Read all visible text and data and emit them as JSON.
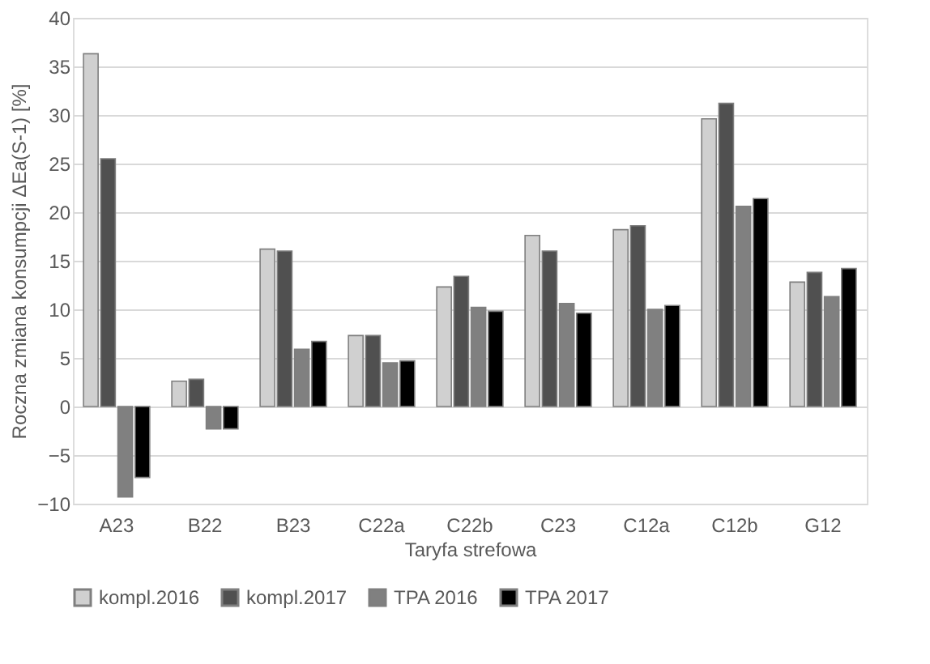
{
  "chart_data": {
    "type": "bar",
    "xlabel": "Taryfa strefowa",
    "ylabel": "Roczna zmiana konsumpcji  ΔEa(S-1) [%]",
    "categories": [
      "A23",
      "B22",
      "B23",
      "C22a",
      "C22b",
      "C23",
      "C12a",
      "C12b",
      "G12"
    ],
    "series": [
      {
        "name": "kompl.2016",
        "color": "#d0d0d0",
        "values": [
          36.3,
          2.6,
          16.2,
          7.3,
          12.3,
          17.6,
          18.2,
          29.6,
          12.8
        ]
      },
      {
        "name": "kompl.2017",
        "color": "#505050",
        "values": [
          25.5,
          2.8,
          16.0,
          7.3,
          13.4,
          16.0,
          18.6,
          31.2,
          13.8
        ]
      },
      {
        "name": "TPA 2016",
        "color": "#808080",
        "values": [
          -9.3,
          -2.3,
          5.9,
          4.5,
          10.2,
          10.6,
          10.0,
          20.6,
          11.3
        ]
      },
      {
        "name": "TPA 2017",
        "color": "#000000",
        "values": [
          -7.3,
          -2.3,
          6.7,
          4.7,
          9.8,
          9.6,
          10.4,
          21.4,
          14.2
        ]
      }
    ],
    "ylim": [
      -10,
      40
    ],
    "yticks": [
      -10,
      -5,
      0,
      5,
      10,
      15,
      20,
      25,
      30,
      35,
      40
    ],
    "grid": "y",
    "legend": "bottom"
  }
}
